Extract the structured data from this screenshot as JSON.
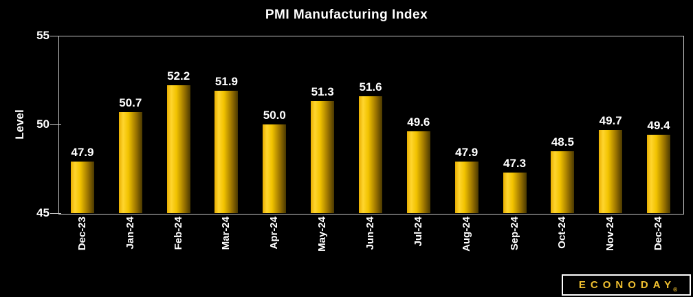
{
  "chart_data": {
    "type": "bar",
    "title": "PMI Manufacturing Index",
    "xlabel": "",
    "ylabel": "Level",
    "ylim": [
      45,
      55
    ],
    "yticks": [
      55,
      50,
      45
    ],
    "grid": false,
    "legend_position": "none",
    "categories": [
      "Dec-23",
      "Jan-24",
      "Feb-24",
      "Mar-24",
      "Apr-24",
      "May-24",
      "Jun-24",
      "Jul-24",
      "Aug-24",
      "Sep-24",
      "Oct-24",
      "Nov-24",
      "Dec-24"
    ],
    "values": [
      47.9,
      50.7,
      52.2,
      51.9,
      50.0,
      51.3,
      51.6,
      49.6,
      47.9,
      47.3,
      48.5,
      49.7,
      49.4
    ],
    "value_labels": [
      "47.9",
      "50.7",
      "52.2",
      "51.9",
      "50.0",
      "51.3",
      "51.6",
      "49.6",
      "47.9",
      "47.3",
      "48.5",
      "49.7",
      "49.4"
    ],
    "colors": {
      "background": "#000000",
      "text": "#ffffff",
      "axis": "#c9c9c9",
      "bar_gradient": [
        "#e8ae00",
        "#ffd52e",
        "#f2c300",
        "#9f7700",
        "#4a3800"
      ]
    }
  },
  "branding": {
    "logo_text": "ECONODAY",
    "registered_mark": "®",
    "logo_color": "#f0c030"
  }
}
